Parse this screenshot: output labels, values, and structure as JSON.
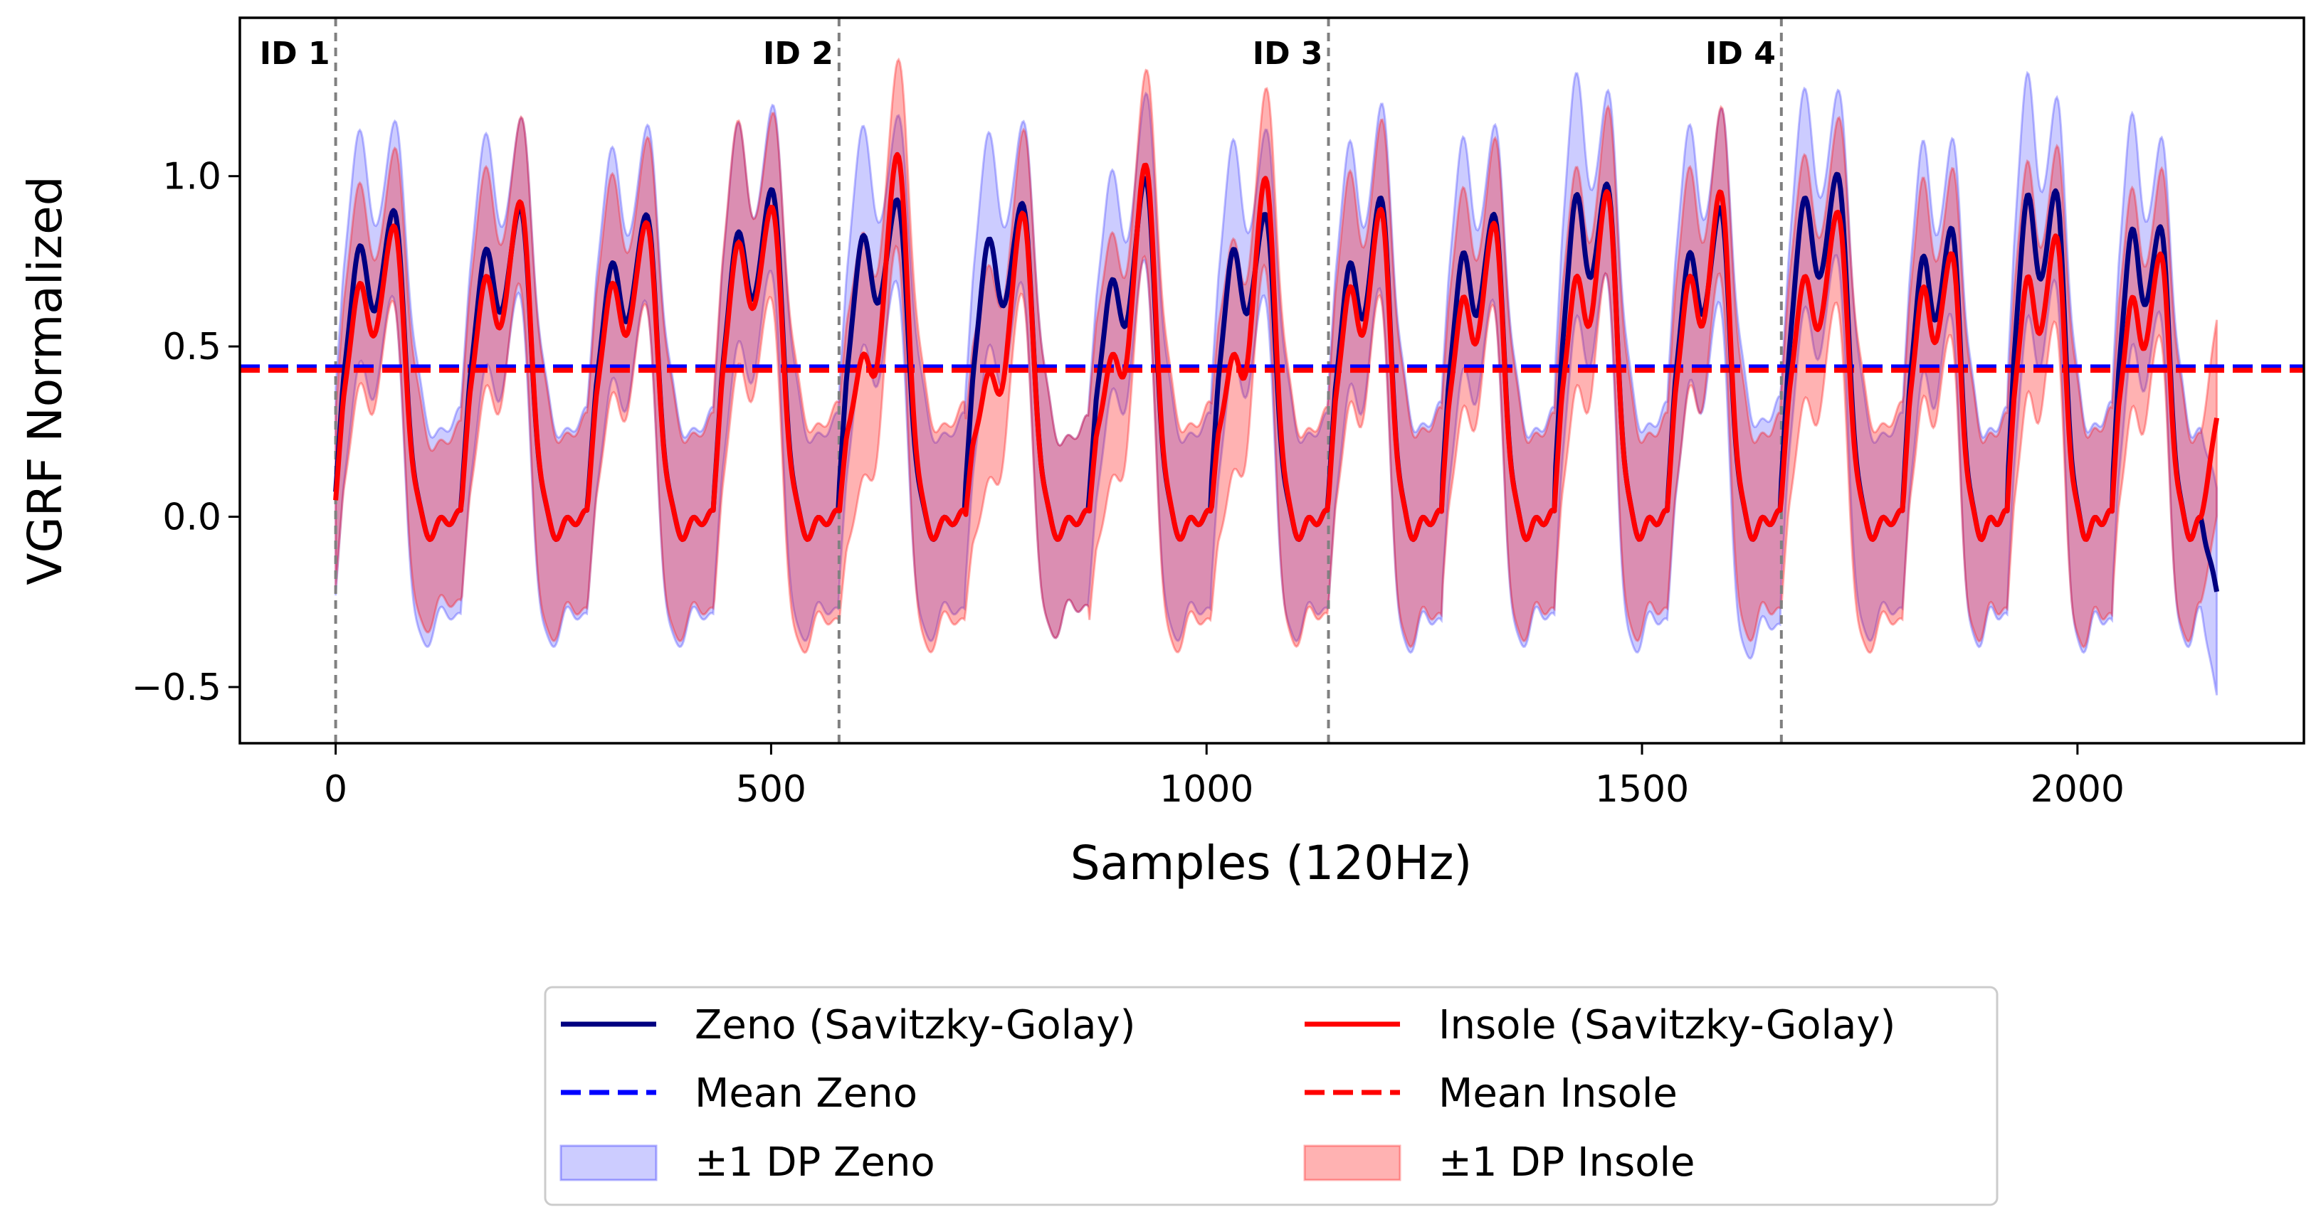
{
  "chart_data": {
    "type": "line",
    "title": "",
    "xlabel": "Samples (120Hz)",
    "ylabel": "VGRF Normalized",
    "xlim": [
      -110,
      2260
    ],
    "ylim": [
      -0.665,
      1.465
    ],
    "x_ticks": [
      {
        "value": 0,
        "label": "0"
      },
      {
        "value": 500,
        "label": "500"
      },
      {
        "value": 1000,
        "label": "1000"
      },
      {
        "value": 1500,
        "label": "1500"
      },
      {
        "value": 2000,
        "label": "2000"
      }
    ],
    "y_ticks": [
      {
        "value": -0.5,
        "label": "−0.5"
      },
      {
        "value": 0.0,
        "label": "0.0"
      },
      {
        "value": 0.5,
        "label": "0.5"
      },
      {
        "value": 1.0,
        "label": "1.0"
      }
    ],
    "grid": false,
    "trial_markers": [
      {
        "x": 0,
        "label": "ID 1"
      },
      {
        "x": 578,
        "label": "ID 2"
      },
      {
        "x": 1140,
        "label": "ID 3"
      },
      {
        "x": 1660,
        "label": "ID 4"
      }
    ],
    "series_x_range": [
      0,
      2160
    ],
    "strides": [
      {
        "start": 0,
        "len": 145,
        "zeno_peaks": [
          0.77,
          0.87
        ],
        "insole_peaks": [
          0.66,
          0.83
        ],
        "zeno_sd": 0.38,
        "insole_sd": 0.33
      },
      {
        "start": 145,
        "len": 145,
        "zeno_peaks": [
          0.76,
          0.88
        ],
        "insole_peaks": [
          0.68,
          0.9
        ],
        "zeno_sd": 0.38,
        "insole_sd": 0.36
      },
      {
        "start": 290,
        "len": 145,
        "zeno_peaks": [
          0.72,
          0.86
        ],
        "insole_peaks": [
          0.66,
          0.84
        ],
        "zeno_sd": 0.38,
        "insole_sd": 0.36
      },
      {
        "start": 435,
        "len": 143,
        "zeno_peaks": [
          0.81,
          0.93
        ],
        "insole_peaks": [
          0.78,
          0.88
        ],
        "zeno_sd": 0.36,
        "insole_sd": 0.4
      },
      {
        "start": 578,
        "len": 145,
        "zeno_peaks": [
          0.8,
          0.9
        ],
        "insole_peaks": [
          0.45,
          1.05
        ],
        "zeno_sd": 0.36,
        "insole_sd": 0.4
      },
      {
        "start": 723,
        "len": 142,
        "zeno_peaks": [
          0.79,
          0.89
        ],
        "insole_peaks": [
          0.4,
          0.88
        ],
        "zeno_sd": 0.35,
        "insole_sd": 0.35
      },
      {
        "start": 865,
        "len": 140,
        "zeno_peaks": [
          0.67,
          0.97
        ],
        "insole_peaks": [
          0.45,
          1.02
        ],
        "zeno_sd": 0.36,
        "insole_sd": 0.4
      },
      {
        "start": 1005,
        "len": 135,
        "zeno_peaks": [
          0.76,
          0.86
        ],
        "insole_peaks": [
          0.45,
          0.98
        ],
        "zeno_sd": 0.36,
        "insole_sd": 0.38
      },
      {
        "start": 1140,
        "len": 130,
        "zeno_peaks": [
          0.72,
          0.91
        ],
        "insole_peaks": [
          0.65,
          0.88
        ],
        "zeno_sd": 0.4,
        "insole_sd": 0.38
      },
      {
        "start": 1270,
        "len": 130,
        "zeno_peaks": [
          0.75,
          0.86
        ],
        "insole_peaks": [
          0.62,
          0.84
        ],
        "zeno_sd": 0.38,
        "insole_sd": 0.36
      },
      {
        "start": 1400,
        "len": 130,
        "zeno_peaks": [
          0.92,
          0.94
        ],
        "insole_peaks": [
          0.68,
          0.93
        ],
        "zeno_sd": 0.4,
        "insole_sd": 0.36
      },
      {
        "start": 1530,
        "len": 130,
        "zeno_peaks": [
          0.75,
          0.88
        ],
        "insole_peaks": [
          0.68,
          0.93
        ],
        "zeno_sd": 0.42,
        "insole_sd": 0.36
      },
      {
        "start": 1660,
        "len": 140,
        "zeno_peaks": [
          0.91,
          0.97
        ],
        "insole_peaks": [
          0.68,
          0.87
        ],
        "zeno_sd": 0.36,
        "insole_sd": 0.4
      },
      {
        "start": 1800,
        "len": 120,
        "zeno_peaks": [
          0.74,
          0.82
        ],
        "insole_peaks": [
          0.65,
          0.75
        ],
        "zeno_sd": 0.38,
        "insole_sd": 0.36
      },
      {
        "start": 1920,
        "len": 120,
        "zeno_peaks": [
          0.92,
          0.92
        ],
        "insole_peaks": [
          0.68,
          0.8
        ],
        "zeno_sd": 0.4,
        "insole_sd": 0.38
      },
      {
        "start": 2040,
        "len": 120,
        "zeno_peaks": [
          0.82,
          0.82
        ],
        "insole_peaks": [
          0.62,
          0.75
        ],
        "zeno_sd": 0.38,
        "insole_sd": 0.36
      }
    ],
    "series": [
      {
        "name": "Zeno (Savitzky-Golay)",
        "kind": "line",
        "color": "#000080",
        "end_value": -0.22
      },
      {
        "name": "Insole (Savitzky-Golay)",
        "kind": "line",
        "color": "#ff0000",
        "end_value": 0.29
      },
      {
        "name": "Mean Zeno",
        "kind": "hline",
        "value": 0.44,
        "color": "#0000ff"
      },
      {
        "name": "Mean Insole",
        "kind": "hline",
        "value": 0.43,
        "color": "#ff0000"
      },
      {
        "name": "±1 DP Zeno",
        "kind": "band",
        "color": "#0000ff"
      },
      {
        "name": "±1 DP Insole",
        "kind": "band",
        "color": "#ff0000"
      }
    ],
    "legend": {
      "position": "bottom-center",
      "columns": 2,
      "entries": [
        {
          "label": "Zeno (Savitzky-Golay)",
          "style": "line",
          "color": "#000080"
        },
        {
          "label": "Insole (Savitzky-Golay)",
          "style": "line",
          "color": "#ff0000"
        },
        {
          "label": "Mean Zeno",
          "style": "dashed",
          "color": "#0000ff"
        },
        {
          "label": "Mean Insole",
          "style": "dashed",
          "color": "#ff0000"
        },
        {
          "label": "±1 DP Zeno",
          "style": "patch",
          "color": "#0000ff"
        },
        {
          "label": "±1 DP Insole",
          "style": "patch",
          "color": "#ff0000"
        }
      ]
    }
  }
}
